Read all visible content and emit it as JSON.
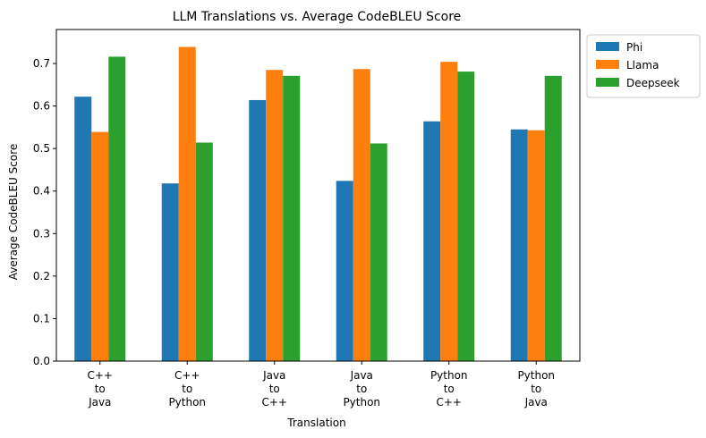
{
  "chart_data": {
    "type": "bar",
    "title": "LLM Translations vs. Average CodeBLEU Score",
    "xlabel": "Translation",
    "ylabel": "Average CodeBLEU Score",
    "categories": [
      [
        "C++",
        "to",
        "Java"
      ],
      [
        "C++",
        "to",
        "Python"
      ],
      [
        "Java",
        "to",
        "C++"
      ],
      [
        "Java",
        "to",
        "Python"
      ],
      [
        "Python",
        "to",
        "C++"
      ],
      [
        "Python",
        "to",
        "Java"
      ]
    ],
    "series": [
      {
        "name": "Phi",
        "color": "#1f77b4",
        "values": [
          0.622,
          0.418,
          0.614,
          0.424,
          0.564,
          0.545
        ]
      },
      {
        "name": "Llama",
        "color": "#ff7f0e",
        "values": [
          0.539,
          0.739,
          0.685,
          0.687,
          0.704,
          0.543
        ]
      },
      {
        "name": "Deepseek",
        "color": "#2ca02c",
        "values": [
          0.716,
          0.514,
          0.671,
          0.512,
          0.681,
          0.671
        ]
      }
    ],
    "ylim": [
      0,
      0.78
    ],
    "yticks": [
      "0.0",
      "0.1",
      "0.2",
      "0.3",
      "0.4",
      "0.5",
      "0.6",
      "0.7"
    ],
    "grid": false,
    "legend_position": "outside-top-right"
  }
}
